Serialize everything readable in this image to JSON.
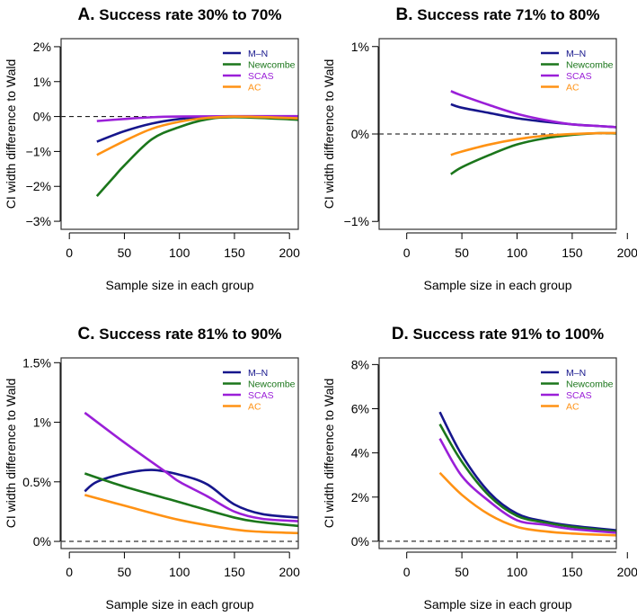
{
  "colors": {
    "M-N": "#16168c",
    "Newcombe": "#1b761b",
    "SCAS": "#9a1fd8",
    "AC": "#ff9214"
  },
  "chart_data": [
    {
      "type": "line",
      "label": "A.",
      "title": "Success rate 30% to 70%",
      "xlabel": "Sample size in each group",
      "ylabel": "CI width difference to Wald",
      "xlim": [
        -7.5,
        208
      ],
      "ylim": [
        -3.23,
        2.23
      ],
      "xticks": [
        0,
        50,
        100,
        150,
        200
      ],
      "yticks": [
        2,
        1,
        0,
        -1,
        -2,
        -3
      ],
      "ytick_labels": [
        "2%",
        "1%",
        "0%",
        "−1%",
        "−2%",
        "−3%"
      ],
      "reference_line": 0,
      "legend": "top-right",
      "series": [
        {
          "name": "M–N",
          "key": "M-N",
          "x": [
            25,
            50,
            75,
            100,
            125,
            150,
            200,
            208
          ],
          "y": [
            -0.72,
            -0.42,
            -0.2,
            -0.07,
            -0.01,
            0,
            0,
            0
          ]
        },
        {
          "name": "Newcombe",
          "key": "Newcombe",
          "x": [
            25,
            40,
            50,
            75,
            100,
            125,
            150,
            200,
            208
          ],
          "y": [
            -2.28,
            -1.75,
            -1.4,
            -0.65,
            -0.3,
            -0.08,
            -0.02,
            -0.08,
            -0.1
          ]
        },
        {
          "name": "SCAS",
          "key": "SCAS",
          "x": [
            25,
            50,
            75,
            100,
            150,
            208
          ],
          "y": [
            -0.13,
            -0.07,
            -0.02,
            0,
            0.01,
            0.01
          ]
        },
        {
          "name": "AC",
          "key": "AC",
          "x": [
            25,
            50,
            75,
            100,
            125,
            150,
            200,
            208
          ],
          "y": [
            -1.1,
            -0.7,
            -0.35,
            -0.15,
            -0.04,
            0,
            -0.04,
            -0.05
          ]
        }
      ]
    },
    {
      "type": "line",
      "label": "B.",
      "title": "Success rate 71% to 80%",
      "xlabel": "Sample size in each group",
      "ylabel": "CI width difference to Wald",
      "xlim": [
        -25,
        190
      ],
      "ylim": [
        -1.09,
        1.09
      ],
      "xticks": [
        0,
        50,
        100,
        150,
        200
      ],
      "yticks": [
        1,
        0,
        -1
      ],
      "ytick_labels": [
        "1%",
        "0%",
        "−1%"
      ],
      "reference_line": 0,
      "legend": "top-right",
      "series": [
        {
          "name": "M–N",
          "key": "M-N",
          "x": [
            40,
            50,
            75,
            100,
            125,
            150,
            175,
            200
          ],
          "y": [
            0.34,
            0.3,
            0.24,
            0.18,
            0.14,
            0.11,
            0.09,
            0.07
          ]
        },
        {
          "name": "Newcombe",
          "key": "Newcombe",
          "x": [
            40,
            50,
            75,
            100,
            125,
            150,
            175,
            200
          ],
          "y": [
            -0.46,
            -0.38,
            -0.24,
            -0.12,
            -0.05,
            -0.01,
            0.01,
            0
          ]
        },
        {
          "name": "SCAS",
          "key": "SCAS",
          "x": [
            40,
            50,
            75,
            100,
            125,
            150,
            175,
            200
          ],
          "y": [
            0.49,
            0.44,
            0.33,
            0.23,
            0.16,
            0.11,
            0.09,
            0.07
          ]
        },
        {
          "name": "AC",
          "key": "AC",
          "x": [
            40,
            50,
            75,
            100,
            125,
            150,
            175,
            200
          ],
          "y": [
            -0.24,
            -0.2,
            -0.12,
            -0.06,
            -0.02,
            0,
            0.01,
            0.01
          ]
        }
      ]
    },
    {
      "type": "line",
      "label": "C.",
      "title": "Success rate 81% to 90%",
      "xlabel": "Sample size in each group",
      "ylabel": "CI width difference to Wald",
      "xlim": [
        -7.5,
        208
      ],
      "ylim": [
        -0.06,
        1.54
      ],
      "xticks": [
        0,
        50,
        100,
        150,
        200
      ],
      "yticks": [
        1.5,
        1,
        0.5,
        0
      ],
      "ytick_labels": [
        "1.5%",
        "1%",
        "0.5%",
        "0%"
      ],
      "reference_line": 0,
      "legend": "top-right",
      "series": [
        {
          "name": "M–N",
          "key": "M-N",
          "x": [
            14,
            25,
            50,
            75,
            100,
            125,
            150,
            175,
            208
          ],
          "y": [
            0.42,
            0.5,
            0.57,
            0.6,
            0.56,
            0.48,
            0.31,
            0.23,
            0.2
          ]
        },
        {
          "name": "Newcombe",
          "key": "Newcombe",
          "x": [
            14,
            50,
            100,
            150,
            175,
            208
          ],
          "y": [
            0.57,
            0.46,
            0.33,
            0.2,
            0.16,
            0.13
          ]
        },
        {
          "name": "SCAS",
          "key": "SCAS",
          "x": [
            14,
            50,
            88,
            100,
            125,
            150,
            175,
            208
          ],
          "y": [
            1.08,
            0.83,
            0.58,
            0.5,
            0.38,
            0.25,
            0.19,
            0.17
          ]
        },
        {
          "name": "AC",
          "key": "AC",
          "x": [
            14,
            50,
            100,
            150,
            175,
            208
          ],
          "y": [
            0.39,
            0.3,
            0.18,
            0.1,
            0.08,
            0.07
          ]
        }
      ]
    },
    {
      "type": "line",
      "label": "D.",
      "title": "Success rate 91% to 100%",
      "xlabel": "Sample size in each group",
      "ylabel": "CI width difference to Wald",
      "xlim": [
        -25,
        190
      ],
      "ylim": [
        -0.33,
        8.3
      ],
      "xticks": [
        0,
        50,
        100,
        150,
        200
      ],
      "yticks": [
        8,
        6,
        4,
        2,
        0
      ],
      "ytick_labels": [
        "8%",
        "6%",
        "4%",
        "2%",
        "0%"
      ],
      "reference_line": 0,
      "legend": "top-right",
      "series": [
        {
          "name": "M–N",
          "key": "M-N",
          "x": [
            30,
            50,
            75,
            100,
            125,
            150,
            200,
            210
          ],
          "y": [
            5.85,
            3.9,
            2.2,
            1.25,
            0.9,
            0.7,
            0.45,
            0.42
          ]
        },
        {
          "name": "Newcombe",
          "key": "Newcombe",
          "x": [
            30,
            50,
            75,
            100,
            125,
            150,
            200,
            210
          ],
          "y": [
            5.3,
            3.6,
            2.05,
            1.15,
            0.85,
            0.65,
            0.4,
            0.38
          ]
        },
        {
          "name": "SCAS",
          "key": "SCAS",
          "x": [
            30,
            50,
            75,
            100,
            125,
            150,
            200,
            210
          ],
          "y": [
            4.65,
            2.95,
            1.8,
            0.95,
            0.75,
            0.55,
            0.35,
            0.33
          ]
        },
        {
          "name": "AC",
          "key": "AC",
          "x": [
            30,
            50,
            75,
            100,
            125,
            150,
            200,
            210
          ],
          "y": [
            3.1,
            2.1,
            1.2,
            0.65,
            0.45,
            0.35,
            0.25,
            0.24
          ]
        }
      ]
    }
  ]
}
